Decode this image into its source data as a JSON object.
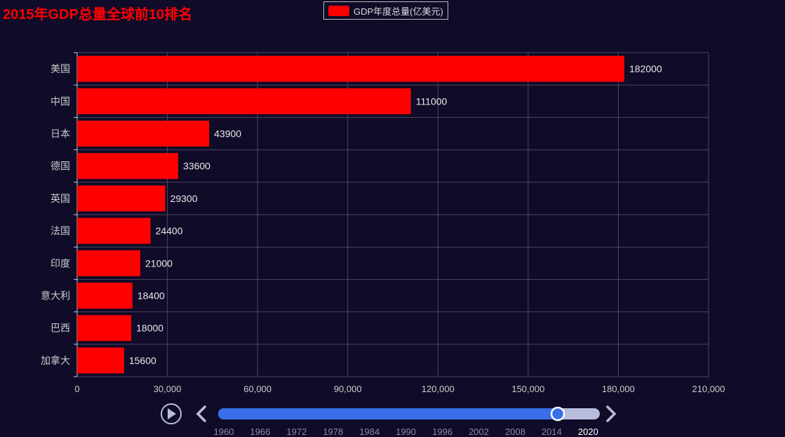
{
  "colors": {
    "background": "#0f0b28",
    "bar": "#ff0000",
    "title": "#ff0000",
    "grid": "#4a4760",
    "axis_text": "#cccccc",
    "timeline_active": "#3a6fe8",
    "timeline_inactive": "#b8bdde"
  },
  "chart_data": {
    "type": "bar",
    "orientation": "horizontal",
    "title": "2015年GDP总量全球前10排名",
    "legend": {
      "position": "top-center",
      "series_name": "GDP年度总量(亿美元)"
    },
    "categories": [
      "美国",
      "中国",
      "日本",
      "德国",
      "英国",
      "法国",
      "印度",
      "意大利",
      "巴西",
      "加拿大"
    ],
    "series": [
      {
        "name": "GDP年度总量(亿美元)",
        "values": [
          182000,
          111000,
          43900,
          33600,
          29300,
          24400,
          21000,
          18400,
          18000,
          15600
        ]
      }
    ],
    "xlim": [
      0,
      210000
    ],
    "x_ticks": [
      "0",
      "30,000",
      "60,000",
      "90,000",
      "120,000",
      "150,000",
      "180,000",
      "210,000"
    ],
    "grid": true,
    "data_labels": true
  },
  "timeline": {
    "labels": [
      "1960",
      "1966",
      "1972",
      "1978",
      "1984",
      "1990",
      "1996",
      "2002",
      "2008",
      "2014",
      "2020"
    ],
    "first_year": 1960,
    "last_year": 2021,
    "current_year": 2015,
    "play_icon": "play-icon",
    "prev_icon": "chevron-left-icon",
    "next_icon": "chevron-right-icon"
  }
}
